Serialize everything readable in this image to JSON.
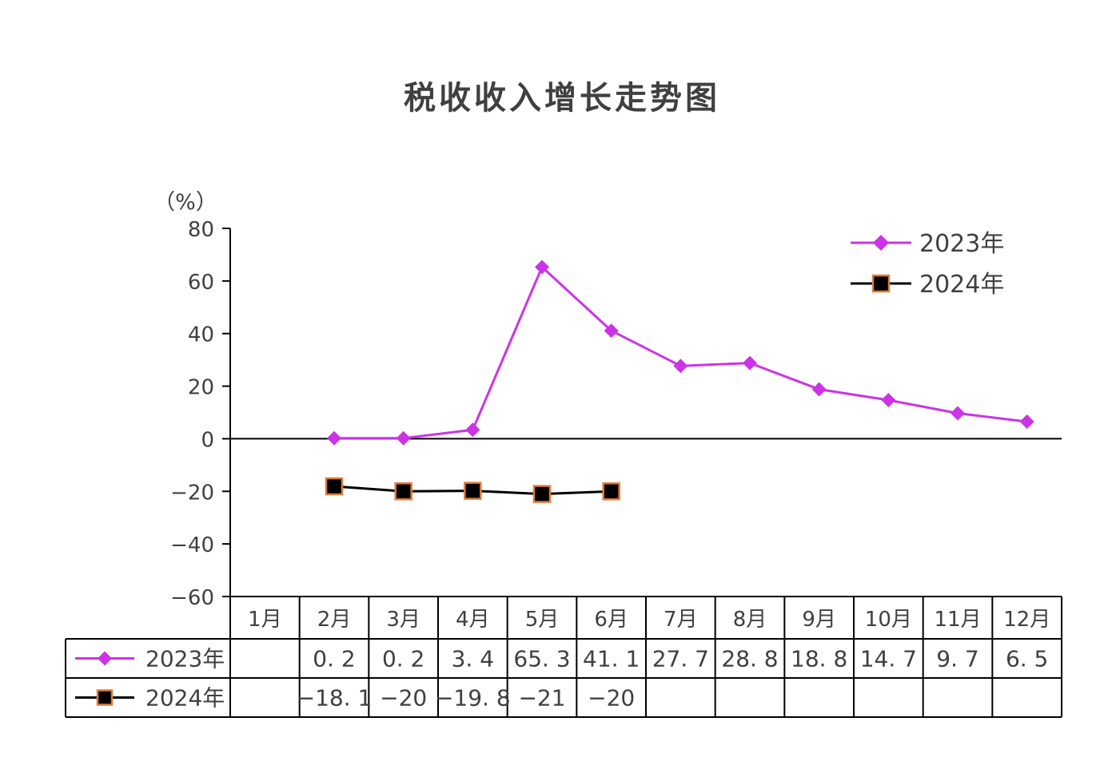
{
  "chart_data": {
    "type": "line",
    "title": "税收收入增长走势图",
    "ylabel": "（%）",
    "ylim": [
      -60,
      80
    ],
    "yticks": [
      80,
      60,
      40,
      20,
      0,
      -20,
      -40,
      -60
    ],
    "ytick_labels": [
      "80",
      "60",
      "40",
      "20",
      "0",
      "−20",
      "−40",
      "−60"
    ],
    "categories": [
      "1月",
      "2月",
      "3月",
      "4月",
      "5月",
      "6月",
      "7月",
      "8月",
      "9月",
      "10月",
      "11月",
      "12月"
    ],
    "legend_position": "top-right",
    "series": [
      {
        "name": "2023年",
        "color": "#CC33E6",
        "marker": "diamond",
        "values": [
          null,
          0.2,
          0.2,
          3.4,
          65.3,
          41.1,
          27.7,
          28.8,
          18.8,
          14.7,
          9.7,
          6.5
        ],
        "table_labels": [
          "",
          "0. 2",
          "0. 2",
          "3. 4",
          "65. 3",
          "41. 1",
          "27. 7",
          "28. 8",
          "18. 8",
          "14. 7",
          "9. 7",
          "6. 5"
        ]
      },
      {
        "name": "2024年",
        "color": "#000000",
        "marker_edge": "#E07B39",
        "marker": "square",
        "values": [
          null,
          -18.1,
          -20,
          -19.8,
          -21,
          -20,
          null,
          null,
          null,
          null,
          null,
          null
        ],
        "table_labels": [
          "",
          "−18. 1",
          "−20",
          "−19. 8",
          "−21",
          "−20",
          "",
          "",
          "",
          "",
          "",
          ""
        ]
      }
    ]
  }
}
